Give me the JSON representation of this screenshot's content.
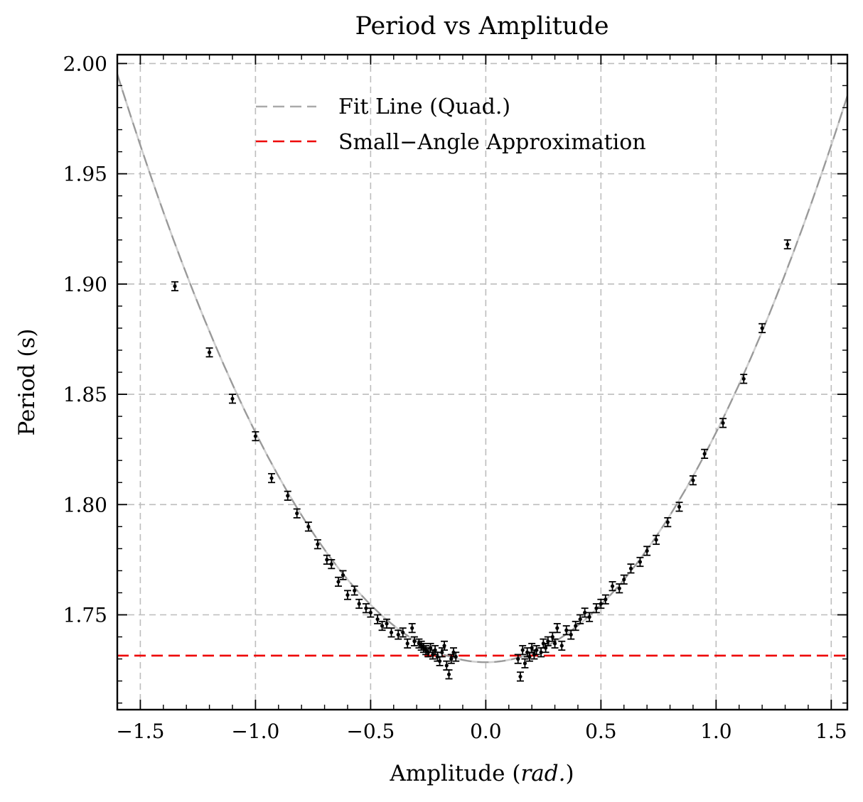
{
  "chart_data": {
    "type": "scatter",
    "title": "Period vs Amplitude",
    "xlabel": "Amplitude",
    "xlabel_unit": "rad.",
    "ylabel": "Period (s)",
    "xlim": [
      -1.6,
      1.57
    ],
    "ylim": [
      1.707,
      2.004
    ],
    "xticks": [
      -1.5,
      -1.0,
      -0.5,
      0.0,
      0.5,
      1.0,
      1.5
    ],
    "xtick_labels": [
      "−1.5",
      "−1.0",
      "−0.5",
      "0.0",
      "0.5",
      "1.0",
      "1.5"
    ],
    "yticks": [
      1.75,
      1.8,
      1.85,
      1.9,
      1.95,
      2.0
    ],
    "ytick_labels": [
      "1.75",
      "1.80",
      "1.85",
      "1.90",
      "1.95",
      "2.00"
    ],
    "grid": true,
    "legend_position": "top-center",
    "legend": [
      {
        "label": "Fit Line (Quad.)",
        "color": "#aaaaaa",
        "style": "dashed"
      },
      {
        "label": "Small−Angle Approximation",
        "color": "#ee0000",
        "style": "dashed"
      }
    ],
    "fit_line": {
      "name": "Fit Line (Quad.)",
      "color": "#999999",
      "coefficients": {
        "a": 0.1042,
        "b": 0.0,
        "c": 1.7285
      }
    },
    "reference_line": {
      "name": "Small−Angle Approximation",
      "y": 1.7315,
      "color": "#ee0000"
    },
    "error_bar": 0.002,
    "points": [
      [
        -1.35,
        1.899
      ],
      [
        -1.2,
        1.869
      ],
      [
        -1.1,
        1.848
      ],
      [
        -1.0,
        1.831
      ],
      [
        -0.93,
        1.812
      ],
      [
        -0.86,
        1.804
      ],
      [
        -0.82,
        1.796
      ],
      [
        -0.77,
        1.79
      ],
      [
        -0.73,
        1.782
      ],
      [
        -0.69,
        1.775
      ],
      [
        -0.67,
        1.773
      ],
      [
        -0.64,
        1.765
      ],
      [
        -0.62,
        1.768
      ],
      [
        -0.6,
        1.759
      ],
      [
        -0.57,
        1.761
      ],
      [
        -0.55,
        1.755
      ],
      [
        -0.52,
        1.753
      ],
      [
        -0.5,
        1.751
      ],
      [
        -0.47,
        1.748
      ],
      [
        -0.45,
        1.745
      ],
      [
        -0.43,
        1.746
      ],
      [
        -0.41,
        1.742
      ],
      [
        -0.38,
        1.741
      ],
      [
        -0.36,
        1.742
      ],
      [
        -0.34,
        1.737
      ],
      [
        -0.32,
        1.744
      ],
      [
        -0.31,
        1.738
      ],
      [
        -0.29,
        1.737
      ],
      [
        -0.28,
        1.736
      ],
      [
        -0.27,
        1.735
      ],
      [
        -0.26,
        1.734
      ],
      [
        -0.25,
        1.733
      ],
      [
        -0.24,
        1.735
      ],
      [
        -0.23,
        1.732
      ],
      [
        -0.22,
        1.734
      ],
      [
        -0.21,
        1.731
      ],
      [
        -0.2,
        1.729
      ],
      [
        -0.19,
        1.733
      ],
      [
        -0.18,
        1.736
      ],
      [
        -0.17,
        1.727
      ],
      [
        -0.16,
        1.723
      ],
      [
        -0.15,
        1.73
      ],
      [
        -0.14,
        1.733
      ],
      [
        -0.13,
        1.731
      ],
      [
        0.14,
        1.73
      ],
      [
        0.15,
        1.722
      ],
      [
        0.16,
        1.734
      ],
      [
        0.17,
        1.728
      ],
      [
        0.18,
        1.733
      ],
      [
        0.19,
        1.731
      ],
      [
        0.2,
        1.735
      ],
      [
        0.21,
        1.732
      ],
      [
        0.22,
        1.734
      ],
      [
        0.24,
        1.733
      ],
      [
        0.25,
        1.737
      ],
      [
        0.26,
        1.735
      ],
      [
        0.27,
        1.738
      ],
      [
        0.29,
        1.74
      ],
      [
        0.3,
        1.737
      ],
      [
        0.31,
        1.744
      ],
      [
        0.33,
        1.736
      ],
      [
        0.35,
        1.743
      ],
      [
        0.37,
        1.741
      ],
      [
        0.39,
        1.745
      ],
      [
        0.41,
        1.748
      ],
      [
        0.43,
        1.751
      ],
      [
        0.45,
        1.749
      ],
      [
        0.48,
        1.753
      ],
      [
        0.5,
        1.755
      ],
      [
        0.52,
        1.757
      ],
      [
        0.55,
        1.763
      ],
      [
        0.58,
        1.762
      ],
      [
        0.6,
        1.766
      ],
      [
        0.63,
        1.771
      ],
      [
        0.67,
        1.774
      ],
      [
        0.7,
        1.779
      ],
      [
        0.74,
        1.784
      ],
      [
        0.79,
        1.792
      ],
      [
        0.84,
        1.799
      ],
      [
        0.9,
        1.811
      ],
      [
        0.95,
        1.823
      ],
      [
        1.03,
        1.837
      ],
      [
        1.12,
        1.857
      ],
      [
        1.2,
        1.88
      ],
      [
        1.31,
        1.918
      ]
    ]
  }
}
